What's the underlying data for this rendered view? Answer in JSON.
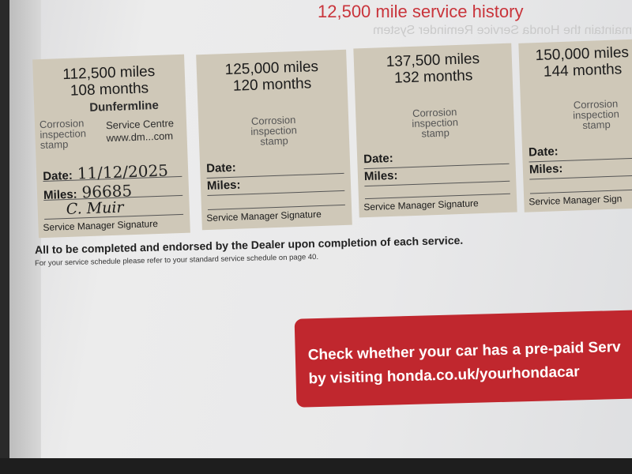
{
  "header": {
    "title": "12,500 mile service history",
    "ghost_text": "maintain the Honda Service Reminder System"
  },
  "cards": [
    {
      "miles": "112,500 miles",
      "months": "108 months",
      "corrosion": [
        "Corrosion",
        "inspection",
        "stamp"
      ],
      "date_label": "Date:",
      "date_value": "11/12/2025",
      "miles_label": "Miles:",
      "miles_value": "96685",
      "signature": "C. Muir",
      "signature_label": "Service Manager Signature",
      "stamp": [
        "Dunfermline",
        "Service Centre",
        "www.dm...com"
      ]
    },
    {
      "miles": "125,000 miles",
      "months": "120 months",
      "corrosion": [
        "Corrosion",
        "inspection",
        "stamp"
      ],
      "date_label": "Date:",
      "miles_label": "Miles:",
      "signature_label": "Service Manager Signature"
    },
    {
      "miles": "137,500 miles",
      "months": "132 months",
      "corrosion": [
        "Corrosion",
        "inspection",
        "stamp"
      ],
      "date_label": "Date:",
      "miles_label": "Miles:",
      "signature_label": "Service Manager Signature"
    },
    {
      "miles": "150,000 miles",
      "months": "144 months",
      "corrosion": [
        "Corrosion",
        "inspection",
        "stamp"
      ],
      "date_label": "Date:",
      "miles_label": "Miles:",
      "signature_label": "Service Manager Sign"
    }
  ],
  "notes": {
    "main": "All to be completed and endorsed by the Dealer upon completion of each service.",
    "sub": "For your service schedule please refer to your standard service schedule on page 40."
  },
  "banner": {
    "line1": "Check whether your car has a pre-paid Serv",
    "line2": "by visiting honda.co.uk/yourhondacar",
    "color": "#c0272e"
  }
}
